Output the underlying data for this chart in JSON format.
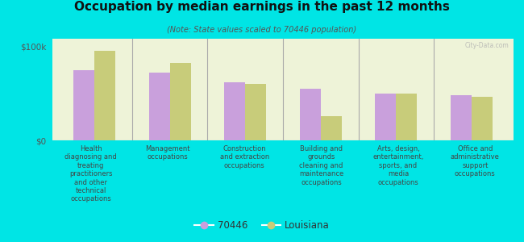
{
  "title": "Occupation by median earnings in the past 12 months",
  "subtitle": "(Note: State values scaled to 70446 population)",
  "background_color": "#00e5e5",
  "plot_bg_color": "#eef3d8",
  "categories": [
    "Health\ndiagnosing and\ntreating\npractitioners\nand other\ntechnical\noccupations",
    "Management\noccupations",
    "Construction\nand extraction\noccupations",
    "Building and\ngrounds\ncleaning and\nmaintenance\noccupations",
    "Arts, design,\nentertainment,\nsports, and\nmedia\noccupations",
    "Office and\nadministrative\nsupport\noccupations"
  ],
  "values_70446": [
    75000,
    72000,
    62000,
    55000,
    50000,
    48000
  ],
  "values_louisiana": [
    95000,
    82000,
    60000,
    26000,
    50000,
    46000
  ],
  "color_70446": "#c9a0dc",
  "color_louisiana": "#c8cc7a",
  "yticks": [
    0,
    100000
  ],
  "ytick_labels": [
    "$0",
    "$100k"
  ],
  "legend_label_70446": "70446",
  "legend_label_louisiana": "Louisiana",
  "watermark": "City-Data.com",
  "ylim": [
    0,
    108000
  ]
}
